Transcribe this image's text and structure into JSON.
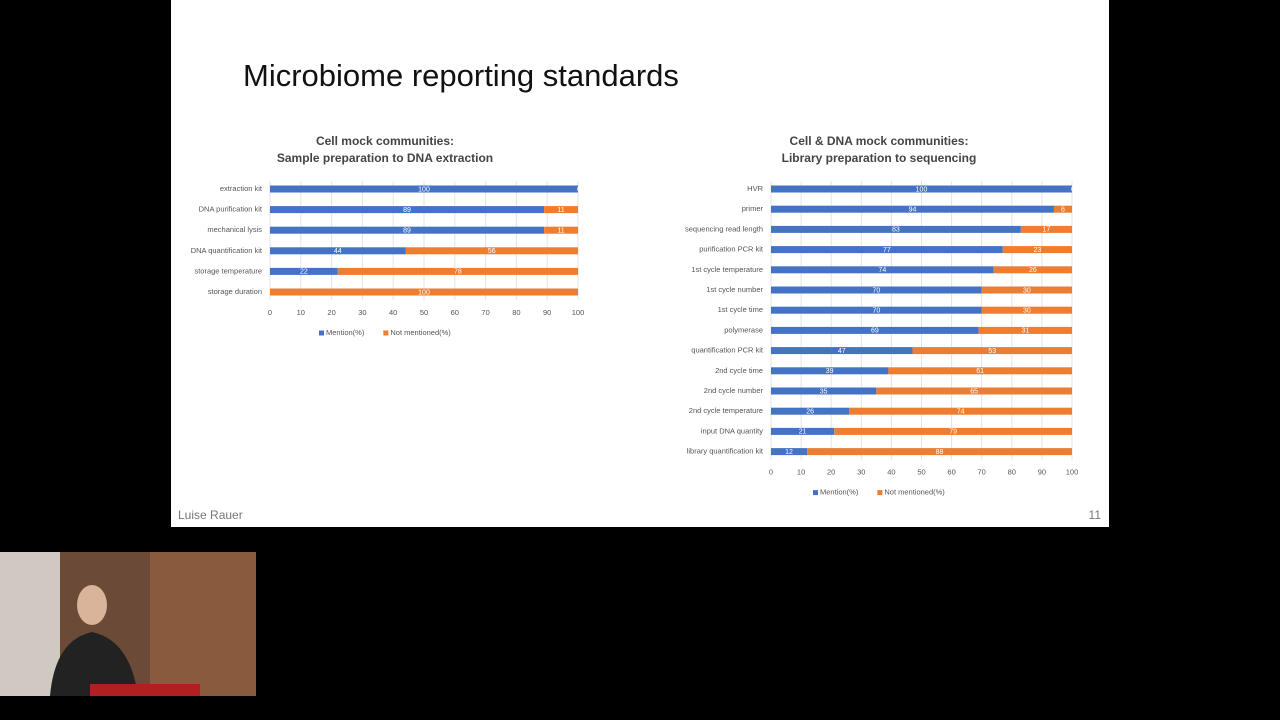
{
  "slide": {
    "title": "Microbiome reporting standards",
    "author": "Luise Rauer",
    "page": "11"
  },
  "chart_data": [
    {
      "type": "stacked-bar-horizontal",
      "title": "Cell mock communities:",
      "subtitle": "Sample preparation to DNA extraction",
      "categories": [
        "extraction kit",
        "DNA purification kit",
        "mechanical lysis",
        "DNA quantification kit",
        "storage temperature",
        "storage duration"
      ],
      "series": [
        {
          "name": "Mention(%)",
          "color": "#4472c4",
          "values": [
            100,
            89,
            89,
            44,
            22,
            0
          ]
        },
        {
          "name": "Not mentioned(%)",
          "color": "#ed7d31",
          "values": [
            0,
            11,
            11,
            56,
            78,
            100
          ]
        }
      ],
      "xlim": [
        0,
        100
      ],
      "xticks": [
        0,
        10,
        20,
        30,
        40,
        50,
        60,
        70,
        80,
        90,
        100
      ],
      "grid": true,
      "legend": "bottom"
    },
    {
      "type": "stacked-bar-horizontal",
      "title": "Cell & DNA mock communities:",
      "subtitle": "Library preparation to sequencing",
      "categories": [
        "HVR",
        "primer",
        "sequencing read length",
        "purification PCR kit",
        "1st cycle temperature",
        "1st cycle number",
        "1st cycle time",
        "polymerase",
        "quantification PCR kit",
        "2nd cycle time",
        "2nd cycle number",
        "2nd cycle temperature",
        "input DNA quantity",
        "library quantification kit"
      ],
      "series": [
        {
          "name": "Mention(%)",
          "color": "#4472c4",
          "values": [
            100,
            94,
            83,
            77,
            74,
            70,
            70,
            69,
            47,
            39,
            35,
            26,
            21,
            12
          ]
        },
        {
          "name": "Not mentioned(%)",
          "color": "#ed7d31",
          "values": [
            0,
            6,
            17,
            23,
            26,
            30,
            30,
            31,
            53,
            61,
            65,
            74,
            79,
            88
          ]
        }
      ],
      "xlim": [
        0,
        100
      ],
      "xticks": [
        0,
        10,
        20,
        30,
        40,
        50,
        60,
        70,
        80,
        90,
        100
      ],
      "grid": true,
      "legend": "bottom"
    }
  ]
}
